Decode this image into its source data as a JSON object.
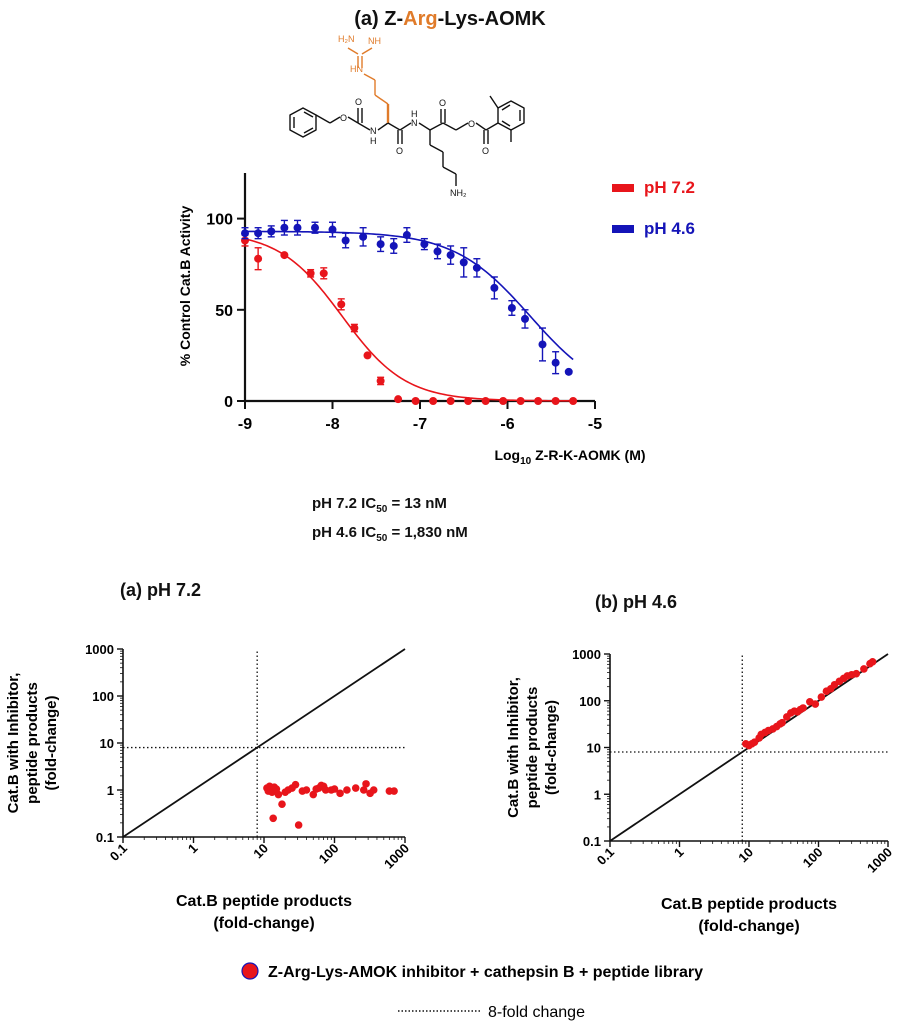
{
  "title": {
    "prefix": "(a) Z-",
    "highlight": "Arg",
    "suffix": "-Lys-AOMK",
    "highlight_color": "#e07b2a"
  },
  "structure_labels": {
    "h2n": "H₂N",
    "nh_top": "NH",
    "hn": "HN",
    "n1": "N",
    "h1": "H",
    "n2": "N",
    "h2": "H",
    "o1": "O",
    "o2": "O",
    "o3": "O",
    "o4": "O",
    "o5": "O",
    "o6": "O",
    "nh2": "NH₂"
  },
  "ic50": {
    "line1": "pH 7.2 IC",
    "line1_sub": "50",
    "line1_value": "=  13 nM",
    "line2": "pH 4.6 IC",
    "line2_sub": "50",
    "line2_value": "=  1,830 nM"
  },
  "panel_titles": {
    "a": "(a)  pH 7.2",
    "b": "(b)  pH 4.6"
  },
  "bottom_legend": {
    "marker_label": "Z-Arg-Lys-AMOK inhibitor + cathepsin B + peptide library",
    "dotted_label": "8-fold change"
  },
  "colors": {
    "red": "#e8151b",
    "blue": "#1414b8",
    "orange": "#e07b2a",
    "black": "#111111"
  },
  "chart_data": [
    {
      "type": "scatter",
      "title": "",
      "xlabel_main": "Log",
      "xlabel_sub": "10",
      "xlabel_rest": " Z-R-K-AOMK (M)",
      "ylabel": "% Control Cat.B Activity",
      "xlim": [
        -9,
        -5
      ],
      "ylim": [
        0,
        125
      ],
      "xticks": [
        -9,
        -8,
        -7,
        -6,
        -5
      ],
      "yticks": [
        0,
        50,
        100
      ],
      "legend_position": "top-right",
      "series": [
        {
          "name": "pH 7.2",
          "color": "#e8151b",
          "fit": {
            "top": 93,
            "bottom": 0,
            "log_ic50": -7.89,
            "hill": 1.2
          },
          "points": [
            {
              "x": -9.0,
              "y": 88,
              "err": 3
            },
            {
              "x": -8.85,
              "y": 78,
              "err": 6
            },
            {
              "x": -8.55,
              "y": 80,
              "err": 0
            },
            {
              "x": -8.25,
              "y": 70,
              "err": 2
            },
            {
              "x": -8.1,
              "y": 70,
              "err": 3
            },
            {
              "x": -7.9,
              "y": 53,
              "err": 3
            },
            {
              "x": -7.75,
              "y": 40,
              "err": 2
            },
            {
              "x": -7.6,
              "y": 25,
              "err": 0
            },
            {
              "x": -7.45,
              "y": 11,
              "err": 2
            },
            {
              "x": -7.25,
              "y": 1,
              "err": 0
            },
            {
              "x": -7.05,
              "y": 0,
              "err": 0
            },
            {
              "x": -6.85,
              "y": 0,
              "err": 0
            },
            {
              "x": -6.65,
              "y": 0,
              "err": 0
            },
            {
              "x": -6.45,
              "y": 0,
              "err": 0
            },
            {
              "x": -6.25,
              "y": 0,
              "err": 0
            },
            {
              "x": -6.05,
              "y": 0,
              "err": 0
            },
            {
              "x": -5.85,
              "y": 0,
              "err": 0
            },
            {
              "x": -5.65,
              "y": 0,
              "err": 0
            },
            {
              "x": -5.45,
              "y": 0,
              "err": 0
            },
            {
              "x": -5.25,
              "y": 0,
              "err": 0
            }
          ]
        },
        {
          "name": "pH 4.6",
          "color": "#1414b8",
          "fit": {
            "top": 93,
            "bottom": 0,
            "log_ic50": -5.74,
            "hill": 1.0
          },
          "points": [
            {
              "x": -9.0,
              "y": 92,
              "err": 3
            },
            {
              "x": -8.85,
              "y": 92,
              "err": 3
            },
            {
              "x": -8.7,
              "y": 93,
              "err": 3
            },
            {
              "x": -8.55,
              "y": 95,
              "err": 4
            },
            {
              "x": -8.4,
              "y": 95,
              "err": 4
            },
            {
              "x": -8.2,
              "y": 95,
              "err": 3
            },
            {
              "x": -8.0,
              "y": 94,
              "err": 4
            },
            {
              "x": -7.85,
              "y": 88,
              "err": 4
            },
            {
              "x": -7.65,
              "y": 90,
              "err": 5
            },
            {
              "x": -7.45,
              "y": 86,
              "err": 4
            },
            {
              "x": -7.3,
              "y": 85,
              "err": 4
            },
            {
              "x": -7.15,
              "y": 91,
              "err": 4
            },
            {
              "x": -6.95,
              "y": 86,
              "err": 3
            },
            {
              "x": -6.8,
              "y": 82,
              "err": 4
            },
            {
              "x": -6.65,
              "y": 80,
              "err": 5
            },
            {
              "x": -6.5,
              "y": 76,
              "err": 8
            },
            {
              "x": -6.35,
              "y": 73,
              "err": 5
            },
            {
              "x": -6.15,
              "y": 62,
              "err": 6
            },
            {
              "x": -5.95,
              "y": 51,
              "err": 4
            },
            {
              "x": -5.8,
              "y": 45,
              "err": 5
            },
            {
              "x": -5.6,
              "y": 31,
              "err": 9
            },
            {
              "x": -5.45,
              "y": 21,
              "err": 6
            },
            {
              "x": -5.3,
              "y": 16,
              "err": 0
            }
          ]
        }
      ]
    },
    {
      "type": "scatter",
      "title": "(a)  pH 7.2",
      "xlabel": [
        "Cat.B peptide products",
        "(fold-change)"
      ],
      "ylabel": [
        "Cat.B with Inhibitor,",
        "peptide products",
        "(fold-change)"
      ],
      "xscale": "log",
      "yscale": "log",
      "xlim": [
        0.1,
        1000
      ],
      "ylim": [
        0.1,
        1000
      ],
      "xticks": [
        0.1,
        1,
        10,
        100,
        1000
      ],
      "yticks": [
        0.1,
        1,
        10,
        100,
        1000
      ],
      "tick_labels": [
        "0.1",
        "1",
        "10",
        "100",
        "1000"
      ],
      "diagonal": true,
      "threshold": 8,
      "series": [
        {
          "color": "#e8151b",
          "points": [
            [
              11,
              1.1
            ],
            [
              11.5,
              0.95
            ],
            [
              12,
              1.2
            ],
            [
              12.5,
              1.0
            ],
            [
              13,
              0.9
            ],
            [
              13.5,
              0.25
            ],
            [
              14,
              1.15
            ],
            [
              15,
              1.05
            ],
            [
              16,
              0.8
            ],
            [
              18,
              0.5
            ],
            [
              20,
              0.9
            ],
            [
              22,
              1.0
            ],
            [
              25,
              1.1
            ],
            [
              28,
              1.3
            ],
            [
              31,
              0.18
            ],
            [
              35,
              0.95
            ],
            [
              40,
              1.0
            ],
            [
              50,
              0.8
            ],
            [
              55,
              1.05
            ],
            [
              60,
              1.1
            ],
            [
              65,
              1.25
            ],
            [
              70,
              1.2
            ],
            [
              75,
              1.0
            ],
            [
              90,
              1.0
            ],
            [
              100,
              1.05
            ],
            [
              120,
              0.85
            ],
            [
              150,
              1.0
            ],
            [
              200,
              1.1
            ],
            [
              260,
              1.0
            ],
            [
              280,
              1.35
            ],
            [
              320,
              0.85
            ],
            [
              360,
              1.0
            ],
            [
              600,
              0.95
            ],
            [
              700,
              0.95
            ]
          ]
        }
      ]
    },
    {
      "type": "scatter",
      "title": "(b)  pH 4.6",
      "xlabel": [
        "Cat.B peptide products",
        "(fold-change)"
      ],
      "ylabel": [
        "Cat.B with Inhibitor,",
        "peptide products",
        "(fold-change)"
      ],
      "xscale": "log",
      "yscale": "log",
      "xlim": [
        0.1,
        1000
      ],
      "ylim": [
        0.1,
        1000
      ],
      "xticks": [
        0.1,
        1,
        10,
        100,
        1000
      ],
      "yticks": [
        0.1,
        1,
        10,
        100,
        1000
      ],
      "tick_labels": [
        "0.1",
        "1",
        "10",
        "100",
        "1000"
      ],
      "diagonal": true,
      "threshold": 8,
      "series": [
        {
          "color": "#e8151b",
          "points": [
            [
              9,
              12
            ],
            [
              10,
              11
            ],
            [
              11,
              12
            ],
            [
              12,
              13
            ],
            [
              14,
              16
            ],
            [
              15,
              19
            ],
            [
              17,
              21
            ],
            [
              19,
              23
            ],
            [
              22,
              25
            ],
            [
              25,
              28
            ],
            [
              28,
              32
            ],
            [
              30,
              34
            ],
            [
              35,
              45
            ],
            [
              40,
              55
            ],
            [
              45,
              60
            ],
            [
              50,
              58
            ],
            [
              55,
              65
            ],
            [
              60,
              70
            ],
            [
              75,
              95
            ],
            [
              90,
              85
            ],
            [
              110,
              120
            ],
            [
              130,
              160
            ],
            [
              150,
              180
            ],
            [
              170,
              220
            ],
            [
              200,
              260
            ],
            [
              230,
              300
            ],
            [
              260,
              340
            ],
            [
              300,
              360
            ],
            [
              350,
              380
            ],
            [
              450,
              480
            ],
            [
              550,
              620
            ],
            [
              600,
              680
            ]
          ]
        }
      ]
    }
  ]
}
